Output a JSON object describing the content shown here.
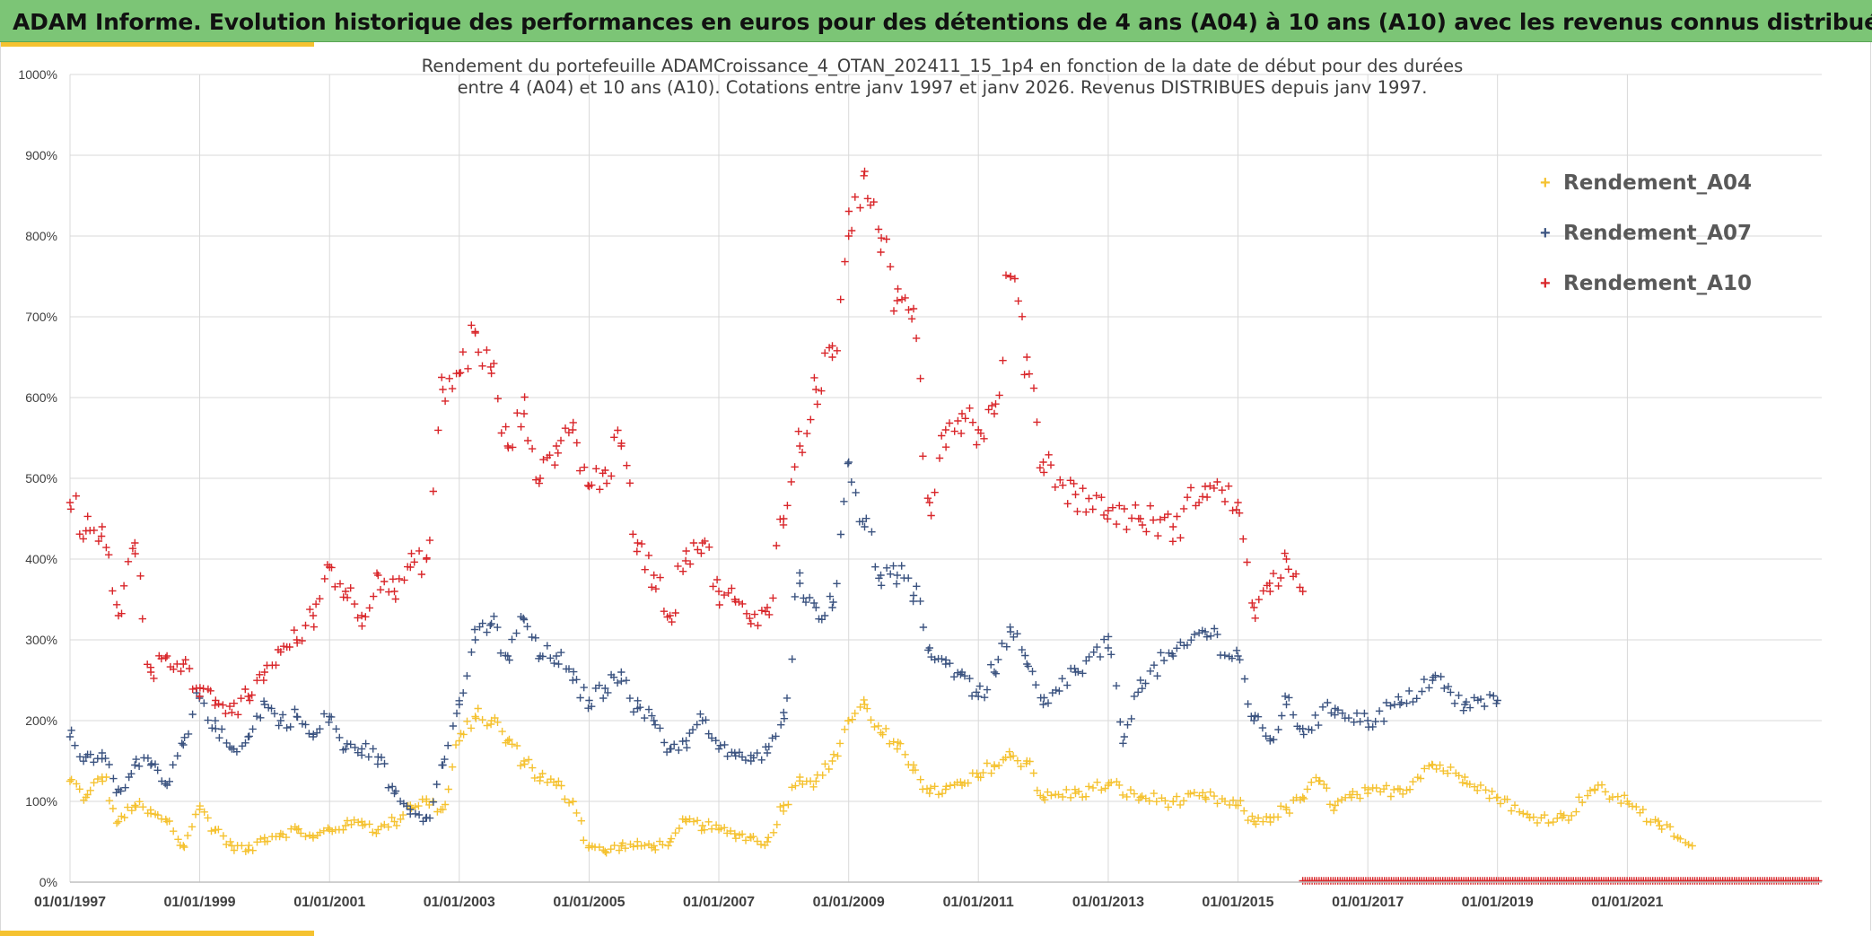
{
  "header": {
    "title": "ADAM Informe. Evolution historique des performances en euros pour des détentions de 4 ans (A04) à 10 ans (A10) avec les revenus connus distribués",
    "color": "#7cc576",
    "accent_color": "#f5c230"
  },
  "chart_data": {
    "type": "scatter",
    "title_lines": [
      "Rendement du portefeuille ADAMCroissance_4_OTAN_202411_15_1p4  en fonction de la date de début pour des durées",
      "entre 4 (A04) et 10 ans (A10). Cotations entre janv 1997 et janv 2026. Revenus DISTRIBUES depuis janv 1997."
    ],
    "x_type": "date",
    "x_range": [
      "1997-01-01",
      "2023-12-31"
    ],
    "x_ticks": [
      "01/01/1997",
      "01/01/1999",
      "01/01/2001",
      "01/01/2003",
      "01/01/2005",
      "01/01/2007",
      "01/01/2009",
      "01/01/2011",
      "01/01/2013",
      "01/01/2015",
      "01/01/2017",
      "01/01/2019",
      "01/01/2021"
    ],
    "y_range": [
      0,
      1000
    ],
    "y_ticks": [
      "0%",
      "100%",
      "200%",
      "300%",
      "400%",
      "500%",
      "600%",
      "700%",
      "800%",
      "900%",
      "1000%"
    ],
    "grid": true,
    "legend_position": "top-right",
    "marker": "+",
    "series": [
      {
        "name": "Rendement_A04",
        "color": "#f5c230",
        "end": "2022-01-01",
        "points": [
          [
            "1997-01-01",
            125
          ],
          [
            "1997-04-01",
            105
          ],
          [
            "1997-07-01",
            130
          ],
          [
            "1997-10-01",
            75
          ],
          [
            "1998-01-01",
            95
          ],
          [
            "1998-04-01",
            85
          ],
          [
            "1998-07-01",
            75
          ],
          [
            "1998-10-01",
            45
          ],
          [
            "1999-01-01",
            90
          ],
          [
            "1999-04-01",
            65
          ],
          [
            "1999-07-01",
            45
          ],
          [
            "1999-10-01",
            40
          ],
          [
            "2000-01-01",
            55
          ],
          [
            "2000-04-01",
            60
          ],
          [
            "2000-07-01",
            65
          ],
          [
            "2000-10-01",
            55
          ],
          [
            "2001-01-01",
            65
          ],
          [
            "2001-04-01",
            70
          ],
          [
            "2001-07-01",
            75
          ],
          [
            "2001-10-01",
            65
          ],
          [
            "2002-01-01",
            75
          ],
          [
            "2002-04-01",
            95
          ],
          [
            "2002-07-01",
            100
          ],
          [
            "2002-10-01",
            90
          ],
          [
            "2003-01-01",
            175
          ],
          [
            "2003-04-01",
            205
          ],
          [
            "2003-07-01",
            200
          ],
          [
            "2003-10-01",
            175
          ],
          [
            "2004-01-01",
            150
          ],
          [
            "2004-04-01",
            130
          ],
          [
            "2004-07-01",
            120
          ],
          [
            "2004-10-01",
            100
          ],
          [
            "2005-01-01",
            45
          ],
          [
            "2005-04-01",
            38
          ],
          [
            "2005-07-01",
            45
          ],
          [
            "2005-10-01",
            45
          ],
          [
            "2006-01-01",
            45
          ],
          [
            "2006-04-01",
            50
          ],
          [
            "2006-07-01",
            75
          ],
          [
            "2006-10-01",
            70
          ],
          [
            "2007-01-01",
            65
          ],
          [
            "2007-04-01",
            60
          ],
          [
            "2007-07-01",
            55
          ],
          [
            "2007-10-01",
            50
          ],
          [
            "2008-01-01",
            95
          ],
          [
            "2008-04-01",
            130
          ],
          [
            "2008-07-01",
            125
          ],
          [
            "2008-10-01",
            150
          ],
          [
            "2009-01-01",
            200
          ],
          [
            "2009-04-01",
            220
          ],
          [
            "2009-07-01",
            185
          ],
          [
            "2009-10-01",
            165
          ],
          [
            "2010-01-01",
            145
          ],
          [
            "2010-04-01",
            110
          ],
          [
            "2010-07-01",
            115
          ],
          [
            "2010-10-01",
            120
          ],
          [
            "2011-01-01",
            130
          ],
          [
            "2011-04-01",
            145
          ],
          [
            "2011-07-01",
            155
          ],
          [
            "2011-10-01",
            150
          ],
          [
            "2012-01-01",
            105
          ],
          [
            "2012-07-01",
            110
          ],
          [
            "2013-01-01",
            120
          ],
          [
            "2013-07-01",
            105
          ],
          [
            "2014-01-01",
            100
          ],
          [
            "2014-07-01",
            105
          ],
          [
            "2015-01-01",
            95
          ],
          [
            "2015-04-01",
            75
          ],
          [
            "2015-07-01",
            80
          ],
          [
            "2015-10-01",
            90
          ],
          [
            "2016-01-01",
            105
          ],
          [
            "2016-04-01",
            125
          ],
          [
            "2016-07-01",
            95
          ],
          [
            "2016-10-01",
            105
          ],
          [
            "2017-01-01",
            110
          ],
          [
            "2017-07-01",
            115
          ],
          [
            "2018-01-01",
            145
          ],
          [
            "2018-07-01",
            130
          ],
          [
            "2019-01-01",
            105
          ],
          [
            "2019-07-01",
            80
          ],
          [
            "2020-01-01",
            80
          ],
          [
            "2020-07-01",
            115
          ],
          [
            "2021-01-01",
            100
          ],
          [
            "2021-07-01",
            70
          ],
          [
            "2022-01-01",
            45
          ]
        ]
      },
      {
        "name": "Rendement_A07",
        "color": "#3b5380",
        "end": "2019-01-01",
        "points": [
          [
            "1997-01-01",
            180
          ],
          [
            "1997-04-01",
            155
          ],
          [
            "1997-07-01",
            160
          ],
          [
            "1997-10-01",
            115
          ],
          [
            "1998-01-01",
            145
          ],
          [
            "1998-04-01",
            145
          ],
          [
            "1998-07-01",
            120
          ],
          [
            "1998-10-01",
            170
          ],
          [
            "1999-01-01",
            230
          ],
          [
            "1999-04-01",
            190
          ],
          [
            "1999-07-01",
            165
          ],
          [
            "1999-10-01",
            180
          ],
          [
            "2000-01-01",
            220
          ],
          [
            "2000-04-01",
            200
          ],
          [
            "2000-07-01",
            205
          ],
          [
            "2000-10-01",
            180
          ],
          [
            "2001-01-01",
            205
          ],
          [
            "2001-04-01",
            165
          ],
          [
            "2001-07-01",
            165
          ],
          [
            "2001-10-01",
            155
          ],
          [
            "2002-01-01",
            110
          ],
          [
            "2002-04-01",
            90
          ],
          [
            "2002-07-01",
            80
          ],
          [
            "2002-10-01",
            145
          ],
          [
            "2003-01-01",
            220
          ],
          [
            "2003-04-01",
            300
          ],
          [
            "2003-07-01",
            320
          ],
          [
            "2003-10-01",
            280
          ],
          [
            "2004-01-01",
            325
          ],
          [
            "2004-04-01",
            280
          ],
          [
            "2004-07-01",
            280
          ],
          [
            "2004-10-01",
            250
          ],
          [
            "2005-01-01",
            225
          ],
          [
            "2005-04-01",
            240
          ],
          [
            "2005-07-01",
            260
          ],
          [
            "2005-10-01",
            215
          ],
          [
            "2006-01-01",
            200
          ],
          [
            "2006-04-01",
            165
          ],
          [
            "2006-07-01",
            175
          ],
          [
            "2006-10-01",
            200
          ],
          [
            "2007-01-01",
            165
          ],
          [
            "2007-04-01",
            160
          ],
          [
            "2007-07-01",
            150
          ],
          [
            "2007-10-01",
            160
          ],
          [
            "2008-01-01",
            210
          ],
          [
            "2008-04-01",
            370
          ],
          [
            "2008-07-01",
            340
          ],
          [
            "2008-10-01",
            340
          ],
          [
            "2009-01-01",
            520
          ],
          [
            "2009-04-01",
            440
          ],
          [
            "2009-07-01",
            380
          ],
          [
            "2009-10-01",
            380
          ],
          [
            "2010-01-01",
            355
          ],
          [
            "2010-04-01",
            290
          ],
          [
            "2010-07-01",
            270
          ],
          [
            "2010-10-01",
            260
          ],
          [
            "2011-01-01",
            230
          ],
          [
            "2011-04-01",
            260
          ],
          [
            "2011-07-01",
            310
          ],
          [
            "2011-10-01",
            270
          ],
          [
            "2012-01-01",
            220
          ],
          [
            "2012-07-01",
            260
          ],
          [
            "2013-01-01",
            290
          ],
          [
            "2013-04-01",
            180
          ],
          [
            "2013-07-01",
            250
          ],
          [
            "2014-01-01",
            280
          ],
          [
            "2014-07-01",
            310
          ],
          [
            "2015-01-01",
            280
          ],
          [
            "2015-04-01",
            200
          ],
          [
            "2015-07-01",
            175
          ],
          [
            "2015-10-01",
            220
          ],
          [
            "2016-01-01",
            190
          ],
          [
            "2016-07-01",
            215
          ],
          [
            "2017-01-01",
            200
          ],
          [
            "2017-07-01",
            220
          ],
          [
            "2018-01-01",
            250
          ],
          [
            "2018-07-01",
            220
          ],
          [
            "2019-01-01",
            225
          ]
        ]
      },
      {
        "name": "Rendement_A10",
        "color": "#d9262a",
        "end": "2016-01-01",
        "points": [
          [
            "1997-01-01",
            470
          ],
          [
            "1997-04-01",
            435
          ],
          [
            "1997-07-01",
            440
          ],
          [
            "1997-10-01",
            330
          ],
          [
            "1998-01-01",
            420
          ],
          [
            "1998-04-01",
            260
          ],
          [
            "1998-07-01",
            280
          ],
          [
            "1998-10-01",
            270
          ],
          [
            "1999-01-01",
            230
          ],
          [
            "1999-04-01",
            225
          ],
          [
            "1999-07-01",
            210
          ],
          [
            "1999-10-01",
            230
          ],
          [
            "2000-01-01",
            260
          ],
          [
            "2000-04-01",
            285
          ],
          [
            "2000-07-01",
            300
          ],
          [
            "2000-10-01",
            330
          ],
          [
            "2001-01-01",
            390
          ],
          [
            "2001-04-01",
            360
          ],
          [
            "2001-07-01",
            330
          ],
          [
            "2001-10-01",
            380
          ],
          [
            "2002-01-01",
            360
          ],
          [
            "2002-04-01",
            390
          ],
          [
            "2002-07-01",
            400
          ],
          [
            "2002-10-01",
            610
          ],
          [
            "2003-01-01",
            630
          ],
          [
            "2003-04-01",
            680
          ],
          [
            "2003-07-01",
            630
          ],
          [
            "2003-10-01",
            540
          ],
          [
            "2004-01-01",
            580
          ],
          [
            "2004-04-01",
            500
          ],
          [
            "2004-07-01",
            540
          ],
          [
            "2004-10-01",
            560
          ],
          [
            "2005-01-01",
            490
          ],
          [
            "2005-04-01",
            510
          ],
          [
            "2005-07-01",
            540
          ],
          [
            "2005-10-01",
            420
          ],
          [
            "2006-01-01",
            380
          ],
          [
            "2006-04-01",
            330
          ],
          [
            "2006-07-01",
            410
          ],
          [
            "2006-10-01",
            420
          ],
          [
            "2007-01-01",
            360
          ],
          [
            "2007-04-01",
            350
          ],
          [
            "2007-07-01",
            320
          ],
          [
            "2007-10-01",
            340
          ],
          [
            "2008-01-01",
            450
          ],
          [
            "2008-04-01",
            540
          ],
          [
            "2008-07-01",
            610
          ],
          [
            "2008-10-01",
            650
          ],
          [
            "2009-01-01",
            800
          ],
          [
            "2009-04-01",
            880
          ],
          [
            "2009-07-01",
            780
          ],
          [
            "2009-10-01",
            720
          ],
          [
            "2010-01-01",
            710
          ],
          [
            "2010-04-01",
            470
          ],
          [
            "2010-07-01",
            560
          ],
          [
            "2010-10-01",
            580
          ],
          [
            "2011-01-01",
            560
          ],
          [
            "2011-04-01",
            580
          ],
          [
            "2011-07-01",
            750
          ],
          [
            "2011-10-01",
            650
          ],
          [
            "2012-01-01",
            520
          ],
          [
            "2012-07-01",
            480
          ],
          [
            "2013-01-01",
            460
          ],
          [
            "2013-07-01",
            450
          ],
          [
            "2014-01-01",
            440
          ],
          [
            "2014-07-01",
            490
          ],
          [
            "2015-01-01",
            470
          ],
          [
            "2015-04-01",
            340
          ],
          [
            "2015-07-01",
            360
          ],
          [
            "2015-10-01",
            400
          ],
          [
            "2016-01-01",
            360
          ]
        ]
      }
    ]
  }
}
